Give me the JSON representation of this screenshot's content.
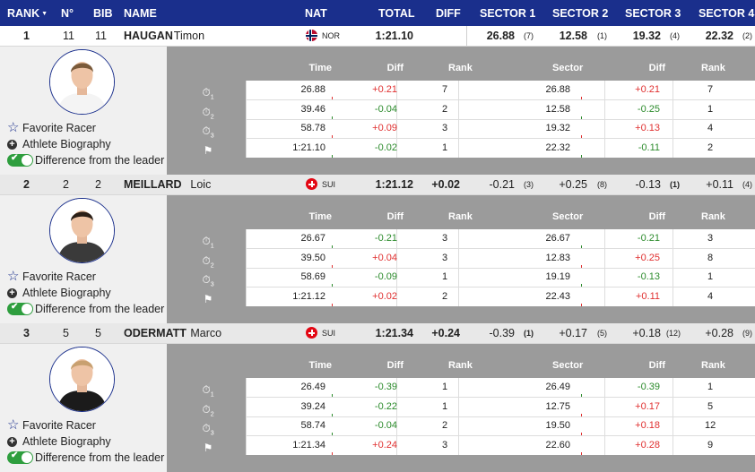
{
  "header": {
    "rank": "RANK",
    "no": "N°",
    "bib": "BIB",
    "name": "NAME",
    "nat": "NAT",
    "total": "TOTAL",
    "diff": "DIFF",
    "sector1": "SECTOR 1",
    "sector2": "SECTOR 2",
    "sector3": "SECTOR 3",
    "sector4": "SECTOR 4"
  },
  "detail_headers": {
    "time": "Time",
    "diff": "Diff",
    "rank": "Rank",
    "sector": "Sector",
    "sdiff": "Diff",
    "srank": "Rank"
  },
  "links": {
    "favorite": "Favorite Racer",
    "biography": "Athlete Biography",
    "difference": "Difference from the leader"
  },
  "colors": {
    "header_bg": "#1a2f8c",
    "positive": "#e03030",
    "negative": "#2c8b2c",
    "toggle": "#2e9e3e"
  },
  "athletes": [
    {
      "rank": "1",
      "no": "11",
      "bib": "11",
      "last": "HAUGAN",
      "first": "Timon",
      "nat": "NOR",
      "flag": "norway-flag-icon",
      "total": "1:21.10",
      "diff": "",
      "s1": "26.88",
      "s1r": "(7)",
      "s2": "12.58",
      "s2r": "(1)",
      "s3": "19.32",
      "s3r": "(4)",
      "s4": "22.32",
      "s4r": "(2)",
      "splits": [
        {
          "time": "26.88",
          "diff": "+0.21",
          "rank": "7",
          "sector": "26.88",
          "sdiff": "+0.21",
          "srank": "7"
        },
        {
          "time": "39.46",
          "diff": "-0.04",
          "rank": "2",
          "sector": "12.58",
          "sdiff": "-0.25",
          "srank": "1"
        },
        {
          "time": "58.78",
          "diff": "+0.09",
          "rank": "3",
          "sector": "19.32",
          "sdiff": "+0.13",
          "srank": "4"
        },
        {
          "time": "1:21.10",
          "diff": "-0.02",
          "rank": "1",
          "sector": "22.32",
          "sdiff": "-0.11",
          "srank": "2"
        }
      ]
    },
    {
      "rank": "2",
      "no": "2",
      "bib": "2",
      "last": "MEILLARD",
      "first": "Loic",
      "nat": "SUI",
      "flag": "switzerland-flag-icon",
      "total": "1:21.12",
      "diff": "+0.02",
      "s1": "-0.21",
      "s1r": "(3)",
      "s2": "+0.25",
      "s2r": "(8)",
      "s3": "-0.13",
      "s3r": "(1)",
      "s4": "+0.11",
      "s4r": "(4)",
      "splits": [
        {
          "time": "26.67",
          "diff": "-0.21",
          "rank": "3",
          "sector": "26.67",
          "sdiff": "-0.21",
          "srank": "3"
        },
        {
          "time": "39.50",
          "diff": "+0.04",
          "rank": "3",
          "sector": "12.83",
          "sdiff": "+0.25",
          "srank": "8"
        },
        {
          "time": "58.69",
          "diff": "-0.09",
          "rank": "1",
          "sector": "19.19",
          "sdiff": "-0.13",
          "srank": "1"
        },
        {
          "time": "1:21.12",
          "diff": "+0.02",
          "rank": "2",
          "sector": "22.43",
          "sdiff": "+0.11",
          "srank": "4"
        }
      ]
    },
    {
      "rank": "3",
      "no": "5",
      "bib": "5",
      "last": "ODERMATT",
      "first": "Marco",
      "nat": "SUI",
      "flag": "switzerland-flag-icon",
      "total": "1:21.34",
      "diff": "+0.24",
      "s1": "-0.39",
      "s1r": "(1)",
      "s2": "+0.17",
      "s2r": "(5)",
      "s3": "+0.18",
      "s3r": "(12)",
      "s4": "+0.28",
      "s4r": "(9)",
      "splits": [
        {
          "time": "26.49",
          "diff": "-0.39",
          "rank": "1",
          "sector": "26.49",
          "sdiff": "-0.39",
          "srank": "1"
        },
        {
          "time": "39.24",
          "diff": "-0.22",
          "rank": "1",
          "sector": "12.75",
          "sdiff": "+0.17",
          "srank": "5"
        },
        {
          "time": "58.74",
          "diff": "-0.04",
          "rank": "2",
          "sector": "19.50",
          "sdiff": "+0.18",
          "srank": "12"
        },
        {
          "time": "1:21.34",
          "diff": "+0.24",
          "rank": "3",
          "sector": "22.60",
          "sdiff": "+0.28",
          "srank": "9"
        }
      ]
    }
  ]
}
